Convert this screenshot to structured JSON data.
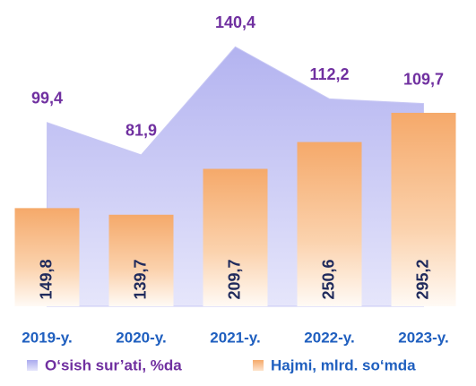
{
  "chart_data": {
    "type": "bar",
    "categories": [
      "2019-y.",
      "2020-y.",
      "2021-y.",
      "2022-y.",
      "2023-y."
    ],
    "series": [
      {
        "name": "O‘sish sur’ati, %da",
        "type": "area",
        "axis": "y2",
        "color": "#b9b9f2",
        "values": [
          99.4,
          81.9,
          140.4,
          112.2,
          109.7
        ],
        "value_labels": [
          "99,4",
          "81,9",
          "140,4",
          "112,2",
          "109,7"
        ]
      },
      {
        "name": "Hajmi, mlrd. so‘mda",
        "type": "bar",
        "color": "#f7b27a",
        "values": [
          149.8,
          139.7,
          209.7,
          250.6,
          295.2
        ],
        "value_labels": [
          "149,8",
          "139,7",
          "209,7",
          "250,6",
          "295,2"
        ]
      }
    ],
    "ylim": [
      0,
      440
    ],
    "y2lim": [
      0,
      156
    ]
  }
}
